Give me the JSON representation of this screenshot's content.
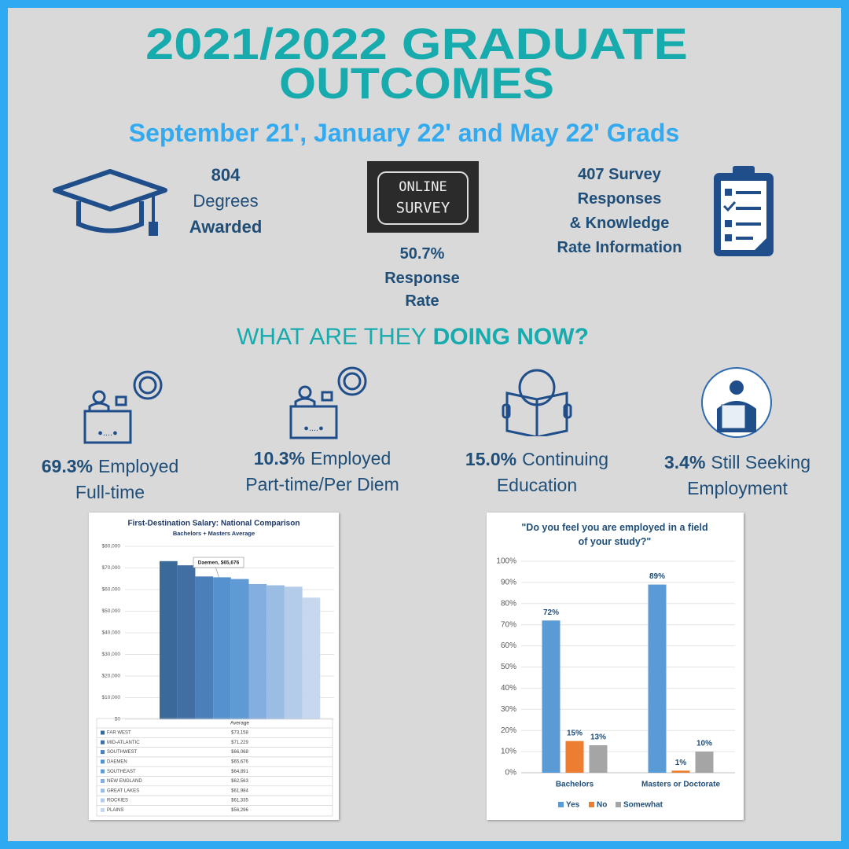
{
  "header": {
    "title_lines": [
      "2021/2022 GRADUATE",
      "OUTCOMES"
    ],
    "subtitle": "September 21', January 22' and May 22' Grads"
  },
  "stats": {
    "degrees": {
      "number": "804",
      "lines": [
        "Degrees",
        "Awarded"
      ]
    },
    "survey_image": [
      "ONLINE",
      "SURVEY"
    ],
    "response": {
      "number": "50.7%",
      "lines": [
        "Response",
        "Rate"
      ]
    },
    "responses": {
      "lines": [
        "407 Survey",
        "Responses",
        "& Knowledge",
        "Rate Information"
      ]
    }
  },
  "doing_now": {
    "heading": "WHAT ARE THEY",
    "heading_bold": "DOING NOW?",
    "items": [
      {
        "percent": "69.3%",
        "lines": [
          "Employed",
          "Full-time"
        ]
      },
      {
        "percent": "10.3%",
        "lines": [
          "Employed",
          "Part-time/Per Diem"
        ]
      },
      {
        "percent": "15.0%",
        "lines": [
          "Continuing",
          "Education"
        ]
      },
      {
        "percent": "3.4%",
        "lines": [
          "Still Seeking",
          "Employment"
        ]
      }
    ]
  },
  "chart_data": [
    {
      "type": "bar",
      "title": "First-Destination Salary: National Comparison",
      "subtitle": "Bachelors + Masters Average",
      "annotation": "Daemen, $65,676",
      "table_header": "Average",
      "categories": [
        "FAR WEST",
        "MID-ATLANTIC",
        "SOUTHWEST",
        "DAEMEN",
        "SOUTHEAST",
        "NEW ENGLAND",
        "GREAT LAKES",
        "ROCKIES",
        "PLAINS"
      ],
      "values": [
        73158,
        71229,
        66068,
        65676,
        64891,
        62563,
        61984,
        61335,
        56296
      ],
      "value_labels": [
        "$73,158",
        "$71,229",
        "$66,068",
        "$65,676",
        "$64,891",
        "$62,563",
        "$61,984",
        "$61,335",
        "$56,296"
      ],
      "colors": [
        "#3b6998",
        "#416fa3",
        "#4a7fba",
        "#5591cc",
        "#5f9ad4",
        "#84aede",
        "#9bbde3",
        "#b2cce9",
        "#c7d8ee"
      ],
      "ylim": [
        0,
        80000
      ],
      "yticks": [
        {
          "value": 0,
          "label": "$0"
        },
        {
          "value": 10000,
          "label": "$10,000"
        },
        {
          "value": 20000,
          "label": "$20,000"
        },
        {
          "value": 30000,
          "label": "$30,000"
        },
        {
          "value": 40000,
          "label": "$40,000"
        },
        {
          "value": 50000,
          "label": "$50,000"
        },
        {
          "value": 60000,
          "label": "$60,000"
        },
        {
          "value": 70000,
          "label": "$70,000"
        },
        {
          "value": 80000,
          "label": "$80,000"
        }
      ],
      "grid": true
    },
    {
      "type": "bar",
      "title": "\"Do you feel you are employed in a field of your study?\"",
      "categories": [
        "Bachelors",
        "Masters or Doctorate"
      ],
      "series": [
        {
          "name": "Yes",
          "color": "#5b9bd5",
          "values": [
            72,
            89
          ],
          "value_labels": [
            "72%",
            "89%"
          ]
        },
        {
          "name": "No",
          "color": "#ed7d31",
          "values": [
            15,
            1
          ],
          "value_labels": [
            "15%",
            "1%"
          ]
        },
        {
          "name": "Somewhat",
          "color": "#a5a5a5",
          "values": [
            13,
            10
          ],
          "value_labels": [
            "13%",
            "10%"
          ]
        }
      ],
      "ylim": [
        0,
        100
      ],
      "yticks": [
        {
          "value": 0,
          "label": "0%"
        },
        {
          "value": 10,
          "label": "10%"
        },
        {
          "value": 20,
          "label": "20%"
        },
        {
          "value": 30,
          "label": "30%"
        },
        {
          "value": 40,
          "label": "40%"
        },
        {
          "value": 50,
          "label": "50%"
        },
        {
          "value": 60,
          "label": "60%"
        },
        {
          "value": 70,
          "label": "70%"
        },
        {
          "value": 80,
          "label": "80%"
        },
        {
          "value": 90,
          "label": "90%"
        },
        {
          "value": 100,
          "label": "100%"
        }
      ],
      "grid": true,
      "legend": "bottom"
    }
  ]
}
